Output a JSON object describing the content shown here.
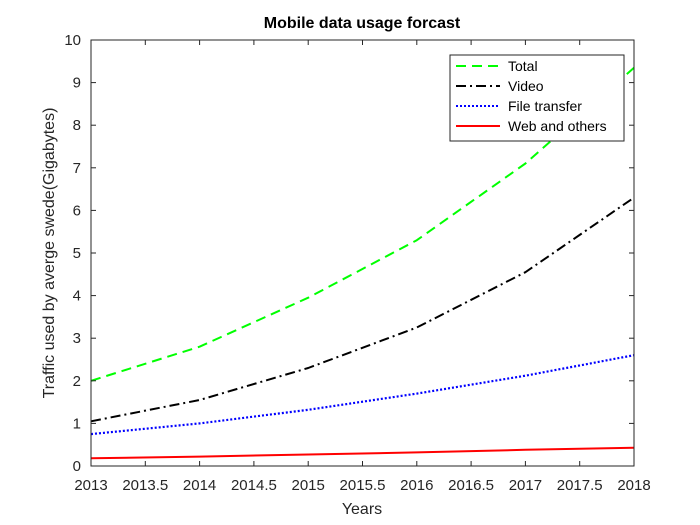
{
  "chart_data": {
    "type": "line",
    "title": "Mobile data usage forcast",
    "xlabel": "Years",
    "ylabel": "Traffic used by averge swede(Gigabytes)",
    "xlim": [
      2013,
      2018
    ],
    "ylim": [
      0,
      10
    ],
    "xticks": [
      "2013",
      "2013.5",
      "2014",
      "2014.5",
      "2015",
      "2015.5",
      "2016",
      "2016.5",
      "2017",
      "2017.5",
      "2018"
    ],
    "yticks": [
      "0",
      "1",
      "2",
      "3",
      "4",
      "5",
      "6",
      "7",
      "8",
      "9",
      "10"
    ],
    "grid": false,
    "legend_position": "top-right",
    "x": [
      2013,
      2014,
      2015,
      2016,
      2017,
      2018
    ],
    "series": [
      {
        "name": "Total",
        "values": [
          2.0,
          2.8,
          3.95,
          5.3,
          7.1,
          9.35
        ],
        "color": "#00ff00",
        "style": "dashed"
      },
      {
        "name": "Video",
        "values": [
          1.05,
          1.55,
          2.3,
          3.25,
          4.55,
          6.3
        ],
        "color": "#000000",
        "style": "dashdot"
      },
      {
        "name": "File transfer",
        "values": [
          0.75,
          1.0,
          1.32,
          1.7,
          2.12,
          2.6
        ],
        "color": "#0000ff",
        "style": "dotted"
      },
      {
        "name": "Web and others",
        "values": [
          0.18,
          0.22,
          0.27,
          0.32,
          0.38,
          0.43
        ],
        "color": "#ff0000",
        "style": "solid"
      }
    ]
  }
}
